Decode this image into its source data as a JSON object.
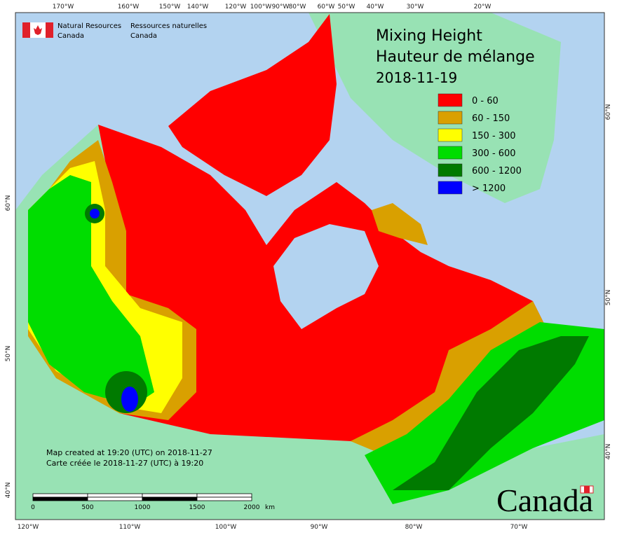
{
  "organization": {
    "english": [
      "Natural Resources",
      "Canada"
    ],
    "french": [
      "Ressources naturelles",
      "Canada"
    ]
  },
  "title": [
    "Mixing Height",
    "Hauteur de mélange",
    "2018-11-19"
  ],
  "legend": [
    {
      "label": "0 - 60",
      "color": "#ff0000"
    },
    {
      "label": "60 - 150",
      "color": "#d9a000"
    },
    {
      "label": "150 - 300",
      "color": "#ffff00"
    },
    {
      "label": "300 - 600",
      "color": "#00dd00"
    },
    {
      "label": "600 - 1200",
      "color": "#007a00"
    },
    {
      "label": "> 1200",
      "color": "#0000ff"
    }
  ],
  "top_labels": [
    "170°W",
    "160°W",
    "150°W",
    "140°W",
    "120°W",
    "100°W",
    "90°W",
    "80°W",
    "60°W",
    "50°W",
    "40°W",
    "30°W",
    "20°W"
  ],
  "bottom_labels": [
    "120°W",
    "110°W",
    "100°W",
    "90°W",
    "80°W",
    "70°W"
  ],
  "left_labels": [
    "60°N",
    "50°N",
    "40°N"
  ],
  "right_labels": [
    "60°N",
    "50°N",
    "40°N"
  ],
  "footer": [
    "Map created at 19:20 (UTC) on 2018-11-27",
    "Carte créée le 2018-11-27 (UTC) à 19:20"
  ],
  "scale_bar": {
    "labels": [
      "0",
      "500",
      "1000",
      "1500",
      "2000"
    ],
    "unit": "km"
  },
  "wordmark": "Canada"
}
